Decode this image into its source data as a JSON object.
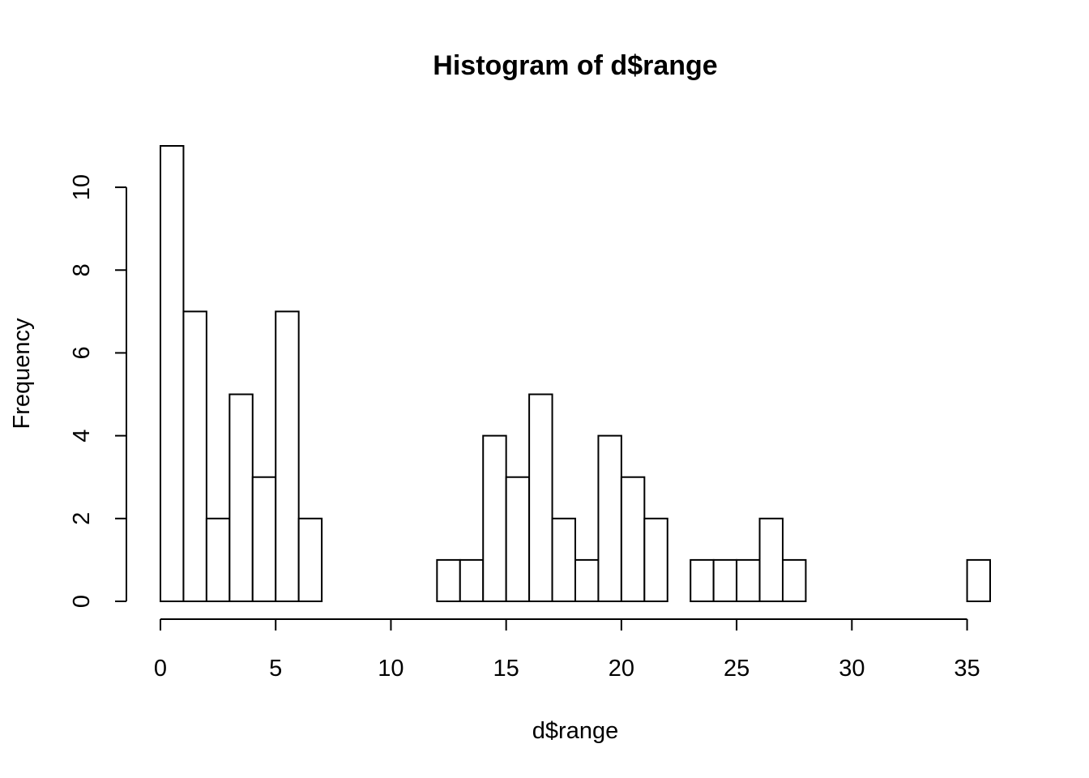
{
  "chart_data": {
    "type": "bar",
    "title": "Histogram of d$range",
    "xlabel": "d$range",
    "ylabel": "Frequency",
    "bin_width": 1,
    "bins": [
      {
        "start": 0,
        "end": 1,
        "count": 11
      },
      {
        "start": 1,
        "end": 2,
        "count": 7
      },
      {
        "start": 2,
        "end": 3,
        "count": 2
      },
      {
        "start": 3,
        "end": 4,
        "count": 5
      },
      {
        "start": 4,
        "end": 5,
        "count": 3
      },
      {
        "start": 5,
        "end": 6,
        "count": 7
      },
      {
        "start": 6,
        "end": 7,
        "count": 2
      },
      {
        "start": 7,
        "end": 8,
        "count": 0
      },
      {
        "start": 8,
        "end": 9,
        "count": 0
      },
      {
        "start": 9,
        "end": 10,
        "count": 0
      },
      {
        "start": 10,
        "end": 11,
        "count": 0
      },
      {
        "start": 11,
        "end": 12,
        "count": 0
      },
      {
        "start": 12,
        "end": 13,
        "count": 1
      },
      {
        "start": 13,
        "end": 14,
        "count": 1
      },
      {
        "start": 14,
        "end": 15,
        "count": 4
      },
      {
        "start": 15,
        "end": 16,
        "count": 3
      },
      {
        "start": 16,
        "end": 17,
        "count": 5
      },
      {
        "start": 17,
        "end": 18,
        "count": 2
      },
      {
        "start": 18,
        "end": 19,
        "count": 1
      },
      {
        "start": 19,
        "end": 20,
        "count": 4
      },
      {
        "start": 20,
        "end": 21,
        "count": 3
      },
      {
        "start": 21,
        "end": 22,
        "count": 2
      },
      {
        "start": 22,
        "end": 23,
        "count": 0
      },
      {
        "start": 23,
        "end": 24,
        "count": 1
      },
      {
        "start": 24,
        "end": 25,
        "count": 1
      },
      {
        "start": 25,
        "end": 26,
        "count": 1
      },
      {
        "start": 26,
        "end": 27,
        "count": 2
      },
      {
        "start": 27,
        "end": 28,
        "count": 1
      },
      {
        "start": 28,
        "end": 29,
        "count": 0
      },
      {
        "start": 29,
        "end": 30,
        "count": 0
      },
      {
        "start": 30,
        "end": 31,
        "count": 0
      },
      {
        "start": 31,
        "end": 32,
        "count": 0
      },
      {
        "start": 32,
        "end": 33,
        "count": 0
      },
      {
        "start": 33,
        "end": 34,
        "count": 0
      },
      {
        "start": 34,
        "end": 35,
        "count": 0
      },
      {
        "start": 35,
        "end": 36,
        "count": 1
      }
    ],
    "xlim": [
      0,
      36
    ],
    "ylim": [
      0,
      11
    ],
    "x_ticks": [
      0,
      5,
      10,
      15,
      20,
      25,
      30,
      35
    ],
    "y_ticks": [
      0,
      2,
      4,
      6,
      8,
      10
    ],
    "grid": false,
    "bar_fill": "#ffffff",
    "bar_stroke": "#000000"
  }
}
